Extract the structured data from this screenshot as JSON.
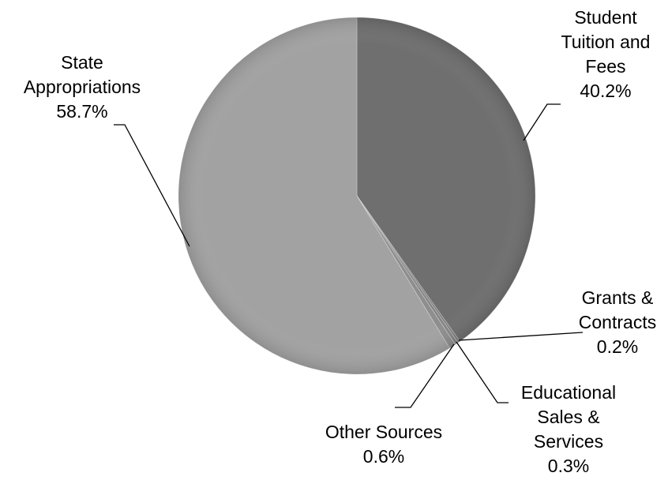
{
  "chart_data": {
    "type": "pie",
    "title": "",
    "start_angle_deg": 0,
    "direction": "clockwise",
    "slices": [
      {
        "name": "Student Tuition and Fees",
        "value": 40.2,
        "label_lines": [
          "Student",
          "Tuition and",
          "Fees",
          "40.2%"
        ],
        "color": "#6f6f6f"
      },
      {
        "name": "Grants & Contracts",
        "value": 0.2,
        "label_lines": [
          "Grants &",
          "Contracts",
          "0.2%"
        ],
        "color": "#7a7a7a"
      },
      {
        "name": "Educational Sales & Services",
        "value": 0.3,
        "label_lines": [
          "Educational",
          "Sales &",
          "Services",
          "0.3%"
        ],
        "color": "#848484"
      },
      {
        "name": "Other Sources",
        "value": 0.6,
        "label_lines": [
          "Other Sources",
          "0.6%"
        ],
        "color": "#8e8e8e"
      },
      {
        "name": "State Appropriations",
        "value": 58.7,
        "label_lines": [
          "State",
          "Appropriations",
          "58.7%"
        ],
        "color": "#a2a2a2"
      }
    ],
    "legend": "none",
    "data_labels": "outside-with-leader-lines"
  }
}
